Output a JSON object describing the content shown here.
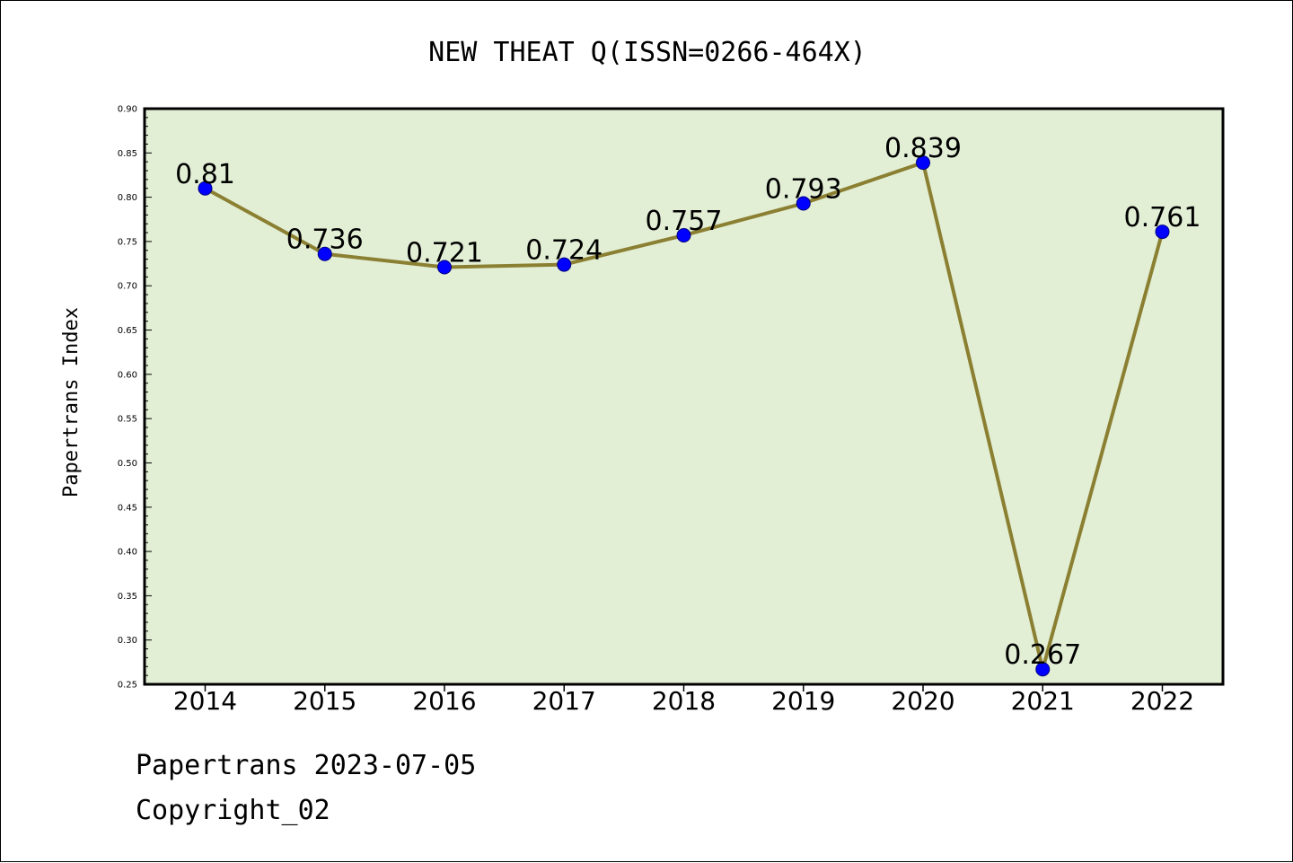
{
  "chart_data": {
    "type": "line",
    "title": "NEW THEAT Q(ISSN=0266-464X)",
    "ylabel": "Papertrans Index",
    "xlabel": "",
    "categories": [
      "2014",
      "2015",
      "2016",
      "2017",
      "2018",
      "2019",
      "2020",
      "2021",
      "2022"
    ],
    "series": [
      {
        "values": [
          0.81,
          0.736,
          0.721,
          0.724,
          0.757,
          0.793,
          0.839,
          0.267,
          0.761
        ],
        "labels": [
          "0.81",
          "0.736",
          "0.721",
          "0.724",
          "0.757",
          "0.793",
          "0.839",
          "0.267",
          "0.761"
        ]
      }
    ],
    "ylim": [
      0.25,
      0.9
    ],
    "yticks": [
      "0.25",
      "0.30",
      "0.35",
      "0.40",
      "0.45",
      "0.50",
      "0.55",
      "0.60",
      "0.65",
      "0.70",
      "0.75",
      "0.80",
      "0.85",
      "0.90"
    ],
    "grid": false,
    "legend": "none",
    "colors": {
      "plot_background": "#e2efd5",
      "line": "#8b7f32",
      "marker": "#0000ff",
      "axis": "#000000"
    }
  },
  "footer": {
    "line1": "Papertrans 2023-07-05",
    "line2": "Copyright_02"
  }
}
